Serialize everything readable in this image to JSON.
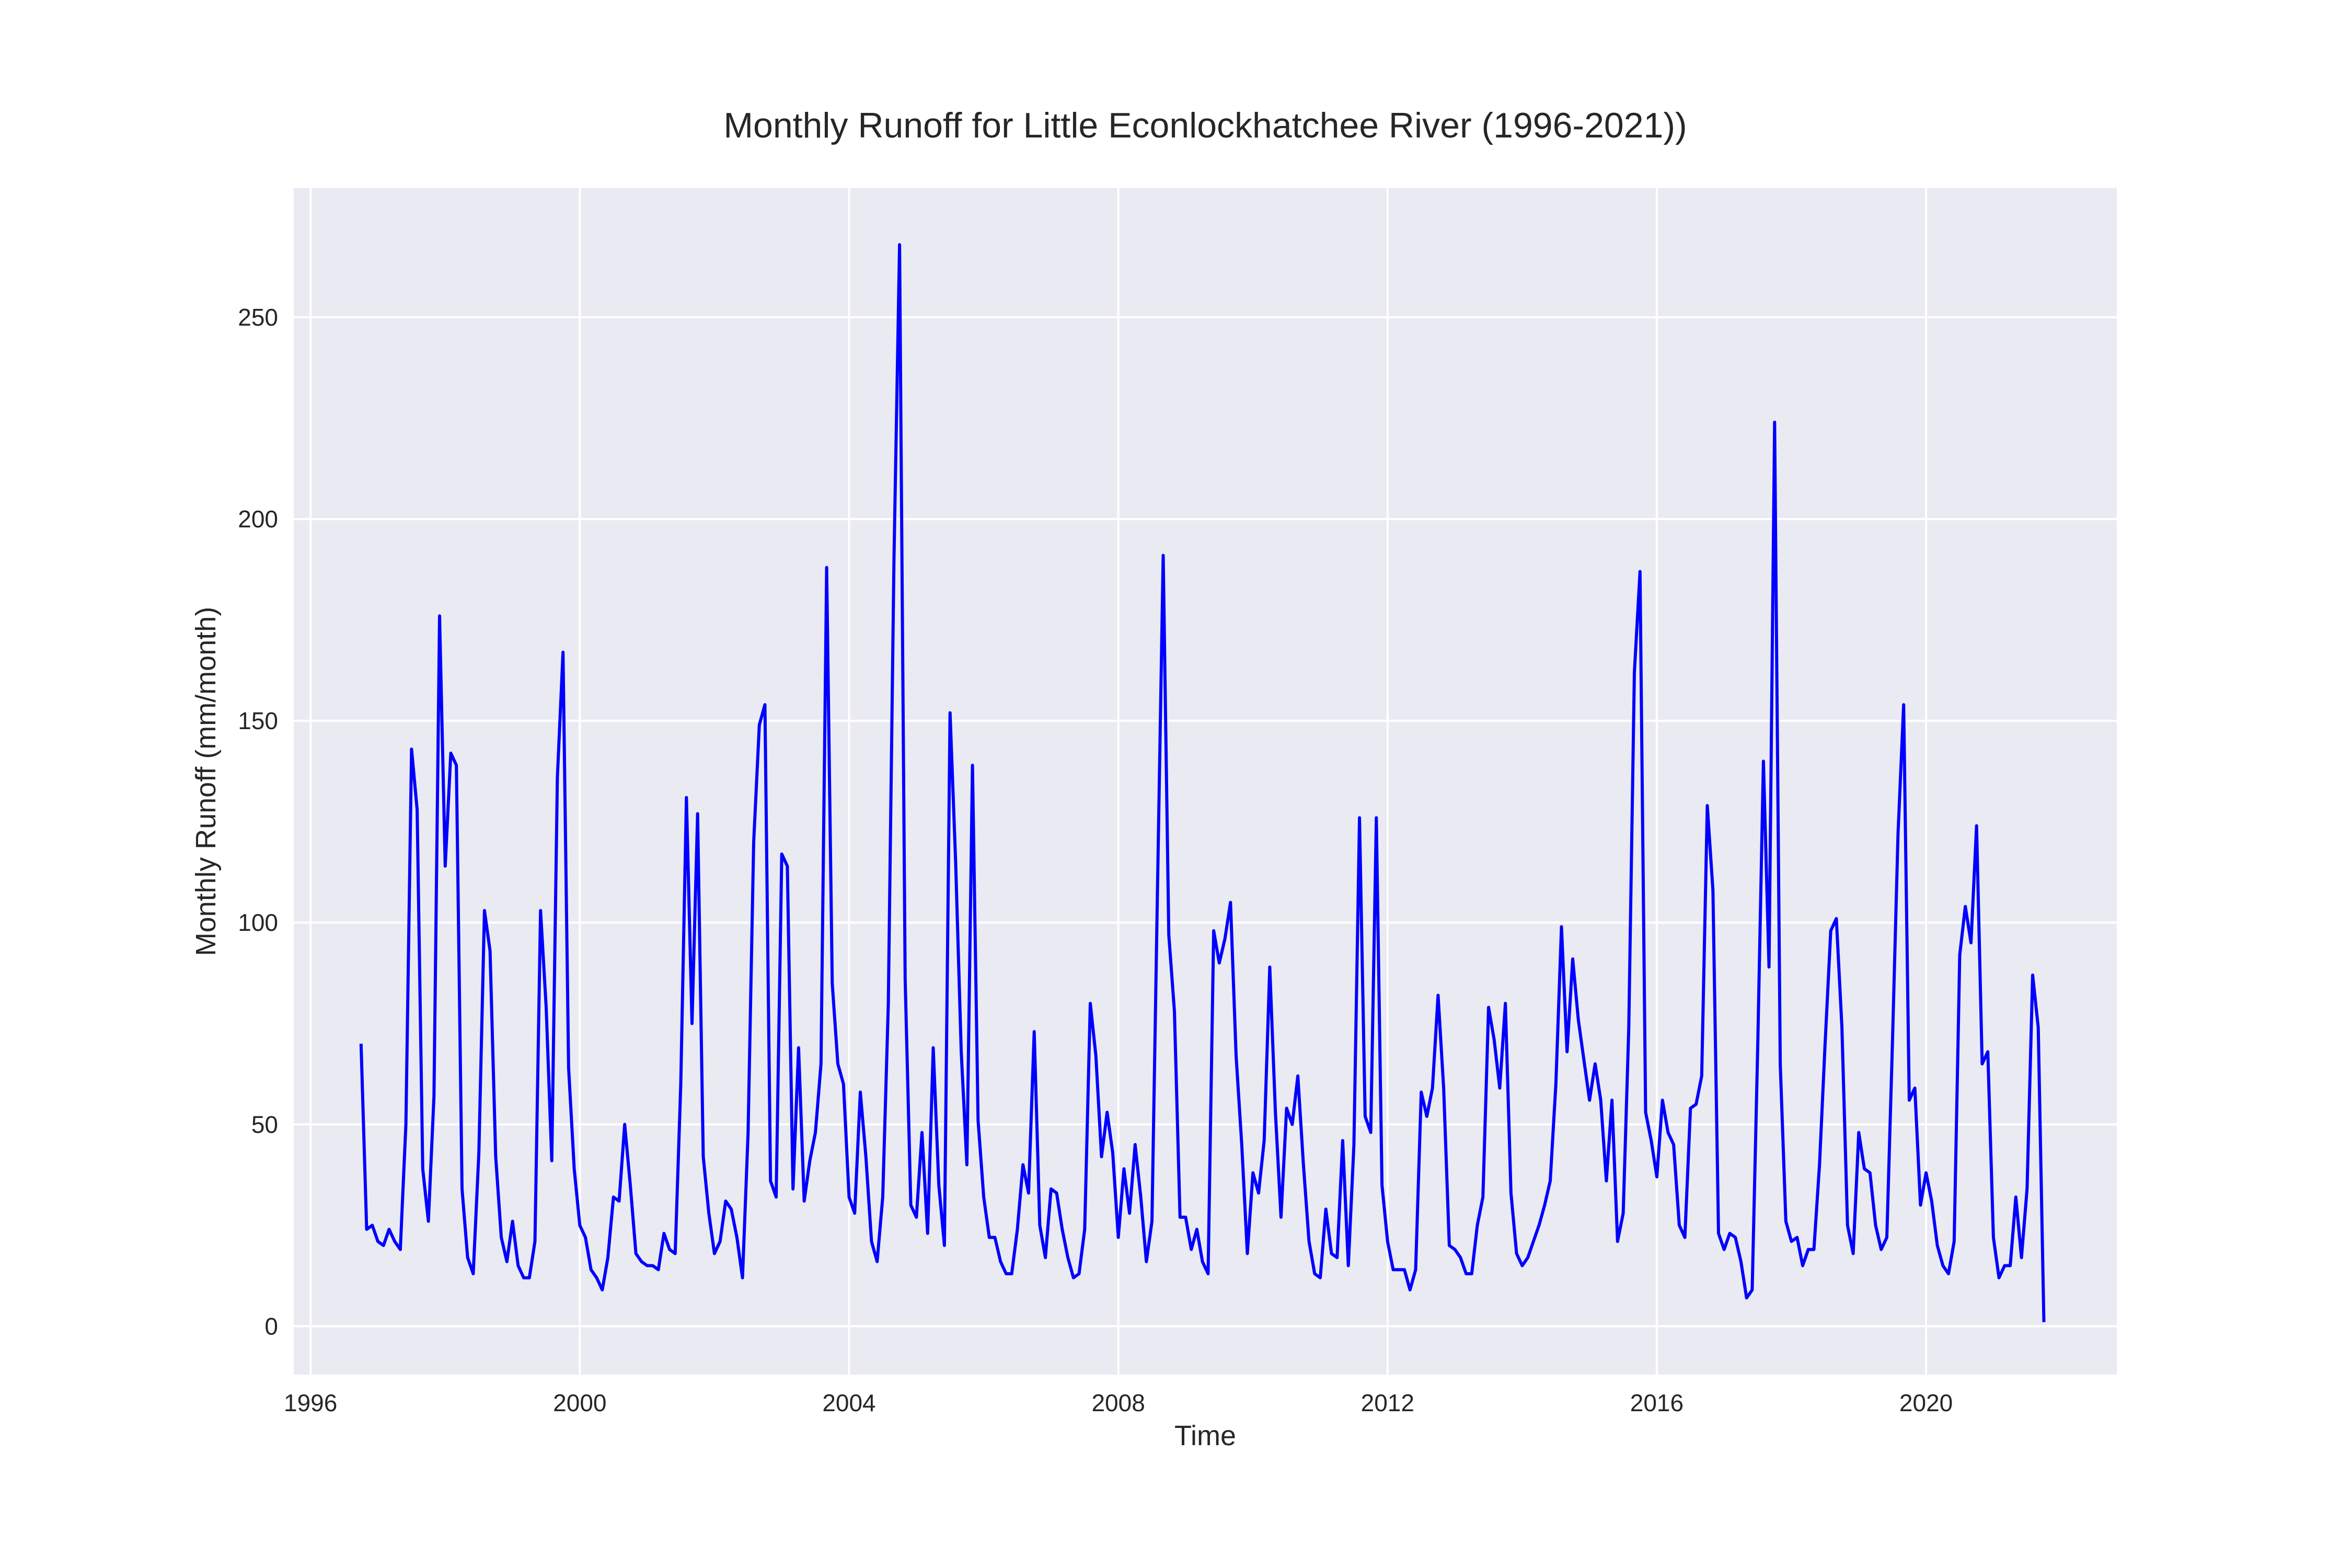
{
  "chart_data": {
    "type": "line",
    "title": "Monthly Runoff for Little Econlockhatchee River (1996-2021))",
    "xlabel": "Time",
    "ylabel": "Monthly Runoff (mm/month)",
    "x_axis_type": "date",
    "xlim": [
      "1995-10",
      "2022-11"
    ],
    "ylim": [
      -12,
      282
    ],
    "x_ticks": [
      "1996",
      "2000",
      "2004",
      "2008",
      "2012",
      "2016",
      "2020"
    ],
    "y_ticks": [
      0,
      50,
      100,
      150,
      200,
      250
    ],
    "grid": true,
    "colors": {
      "line": "#0000ff",
      "plot_background": "#eaeaf2",
      "grid": "#ffffff"
    },
    "series": [
      {
        "x": [
          "1996-10",
          "1996-11",
          "1996-12",
          "1997-01",
          "1997-02",
          "1997-03",
          "1997-04",
          "1997-05",
          "1997-06",
          "1997-07",
          "1997-08",
          "1997-09",
          "1997-10",
          "1997-11",
          "1997-12",
          "1998-01",
          "1998-02",
          "1998-03",
          "1998-04",
          "1998-05",
          "1998-06",
          "1998-07",
          "1998-08",
          "1998-09",
          "1998-10",
          "1998-11",
          "1998-12",
          "1999-01",
          "1999-02",
          "1999-03",
          "1999-04",
          "1999-05",
          "1999-06",
          "1999-07",
          "1999-08",
          "1999-09",
          "1999-10",
          "1999-11",
          "1999-12",
          "2000-01",
          "2000-02",
          "2000-03",
          "2000-04",
          "2000-05",
          "2000-06",
          "2000-07",
          "2000-08",
          "2000-09",
          "2000-10",
          "2000-11",
          "2000-12",
          "2001-01",
          "2001-02",
          "2001-03",
          "2001-04",
          "2001-05",
          "2001-06",
          "2001-07",
          "2001-08",
          "2001-09",
          "2001-10",
          "2001-11",
          "2001-12",
          "2002-01",
          "2002-02",
          "2002-03",
          "2002-04",
          "2002-05",
          "2002-06",
          "2002-07",
          "2002-08",
          "2002-09",
          "2002-10",
          "2002-11",
          "2002-12",
          "2003-01",
          "2003-02",
          "2003-03",
          "2003-04",
          "2003-05",
          "2003-06",
          "2003-07",
          "2003-08",
          "2003-09",
          "2003-10",
          "2003-11",
          "2003-12",
          "2004-01",
          "2004-02",
          "2004-03",
          "2004-04",
          "2004-05",
          "2004-06",
          "2004-07",
          "2004-08",
          "2004-09",
          "2004-10",
          "2004-11",
          "2004-12",
          "2005-01",
          "2005-02",
          "2005-03",
          "2005-04",
          "2005-05",
          "2005-06",
          "2005-07",
          "2005-08",
          "2005-09",
          "2005-10",
          "2005-11",
          "2005-12",
          "2006-01",
          "2006-02",
          "2006-03",
          "2006-04",
          "2006-05",
          "2006-06",
          "2006-07",
          "2006-08",
          "2006-09",
          "2006-10",
          "2006-11",
          "2006-12",
          "2007-01",
          "2007-02",
          "2007-03",
          "2007-04",
          "2007-05",
          "2007-06",
          "2007-07",
          "2007-08",
          "2007-09",
          "2007-10",
          "2007-11",
          "2007-12",
          "2008-01",
          "2008-02",
          "2008-03",
          "2008-04",
          "2008-05",
          "2008-06",
          "2008-07",
          "2008-08",
          "2008-09",
          "2008-10",
          "2008-11",
          "2008-12",
          "2009-01",
          "2009-02",
          "2009-03",
          "2009-04",
          "2009-05",
          "2009-06",
          "2009-07",
          "2009-08",
          "2009-09",
          "2009-10",
          "2009-11",
          "2009-12",
          "2010-01",
          "2010-02",
          "2010-03",
          "2010-04",
          "2010-05",
          "2010-06",
          "2010-07",
          "2010-08",
          "2010-09",
          "2010-10",
          "2010-11",
          "2010-12",
          "2011-01",
          "2011-02",
          "2011-03",
          "2011-04",
          "2011-05",
          "2011-06",
          "2011-07",
          "2011-08",
          "2011-09",
          "2011-10",
          "2011-11",
          "2011-12",
          "2012-01",
          "2012-02",
          "2012-03",
          "2012-04",
          "2012-05",
          "2012-06",
          "2012-07",
          "2012-08",
          "2012-09",
          "2012-10",
          "2012-11",
          "2012-12",
          "2013-01",
          "2013-02",
          "2013-03",
          "2013-04",
          "2013-05",
          "2013-06",
          "2013-07",
          "2013-08",
          "2013-09",
          "2013-10",
          "2013-11",
          "2013-12",
          "2014-01",
          "2014-02",
          "2014-03",
          "2014-04",
          "2014-05",
          "2014-06",
          "2014-07",
          "2014-08",
          "2014-09",
          "2014-10",
          "2014-11",
          "2014-12",
          "2015-01",
          "2015-02",
          "2015-03",
          "2015-04",
          "2015-05",
          "2015-06",
          "2015-07",
          "2015-08",
          "2015-09",
          "2015-10",
          "2015-11",
          "2015-12",
          "2016-01",
          "2016-02",
          "2016-03",
          "2016-04",
          "2016-05",
          "2016-06",
          "2016-07",
          "2016-08",
          "2016-09",
          "2016-10",
          "2016-11",
          "2016-12",
          "2017-01",
          "2017-02",
          "2017-03",
          "2017-04",
          "2017-05",
          "2017-06",
          "2017-07",
          "2017-08",
          "2017-09",
          "2017-10",
          "2017-11",
          "2017-12",
          "2018-01",
          "2018-02",
          "2018-03",
          "2018-04",
          "2018-05",
          "2018-06",
          "2018-07",
          "2018-08",
          "2018-09",
          "2018-10",
          "2018-11",
          "2018-12",
          "2019-01",
          "2019-02",
          "2019-03",
          "2019-04",
          "2019-05",
          "2019-06",
          "2019-07",
          "2019-08",
          "2019-09",
          "2019-10",
          "2019-11",
          "2019-12",
          "2020-01",
          "2020-02",
          "2020-03",
          "2020-04",
          "2020-05",
          "2020-06",
          "2020-07",
          "2020-08",
          "2020-09",
          "2020-10",
          "2020-11",
          "2020-12",
          "2021-01",
          "2021-02",
          "2021-03",
          "2021-04",
          "2021-05",
          "2021-06",
          "2021-07",
          "2021-08",
          "2021-09",
          "2021-10"
        ],
        "y": [
          70,
          24,
          25,
          21,
          20,
          24,
          21,
          19,
          50,
          143,
          128,
          39,
          26,
          57,
          176,
          114,
          142,
          139,
          34,
          17,
          13,
          43,
          103,
          93,
          42,
          22,
          16,
          26,
          15,
          12,
          12,
          21,
          103,
          79,
          41,
          136,
          167,
          64,
          39,
          25,
          22,
          14,
          12,
          9,
          17,
          32,
          31,
          50,
          35,
          18,
          16,
          15,
          15,
          14,
          23,
          19,
          18,
          60,
          131,
          75,
          127,
          42,
          28,
          18,
          21,
          31,
          29,
          22,
          12,
          48,
          120,
          149,
          154,
          36,
          32,
          117,
          114,
          34,
          69,
          31,
          41,
          48,
          65,
          188,
          85,
          65,
          60,
          32,
          28,
          58,
          42,
          21,
          16,
          32,
          80,
          190,
          268,
          86,
          30,
          27,
          48,
          23,
          69,
          35,
          20,
          152,
          115,
          68,
          40,
          139,
          51,
          32,
          22,
          22,
          16,
          13,
          13,
          24,
          40,
          33,
          73,
          25,
          17,
          34,
          33,
          24,
          17,
          12,
          13,
          24,
          80,
          67,
          42,
          53,
          43,
          22,
          39,
          28,
          45,
          32,
          16,
          26,
          110,
          191,
          97,
          78,
          27,
          27,
          19,
          24,
          16,
          13,
          98,
          90,
          96,
          105,
          67,
          45,
          18,
          38,
          33,
          46,
          89,
          53,
          27,
          54,
          50,
          62,
          40,
          21,
          13,
          12,
          29,
          18,
          17,
          46,
          15,
          45,
          126,
          52,
          48,
          126,
          35,
          21,
          14,
          14,
          14,
          9,
          14,
          58,
          52,
          59,
          82,
          59,
          20,
          19,
          17,
          13,
          13,
          25,
          32,
          79,
          71,
          59,
          80,
          33,
          18,
          15,
          17,
          21,
          25,
          30,
          36,
          60,
          99,
          68,
          91,
          76,
          66,
          56,
          65,
          56,
          36,
          56,
          21,
          28,
          74,
          162,
          187,
          53,
          46,
          37,
          56,
          48,
          45,
          25,
          22,
          54,
          55,
          62,
          129,
          108,
          23,
          19,
          23,
          22,
          16,
          7,
          9,
          70,
          140,
          89,
          224,
          65,
          26,
          21,
          22,
          15,
          19,
          19,
          40,
          70,
          98,
          101,
          74,
          25,
          18,
          48,
          39,
          38,
          25,
          19,
          22,
          70,
          122,
          154,
          56,
          59,
          30,
          38,
          31,
          20,
          15,
          13,
          21,
          92,
          104,
          95,
          124,
          65,
          68,
          22,
          12,
          15,
          15,
          32,
          17,
          34,
          87,
          74,
          1
        ]
      }
    ]
  }
}
